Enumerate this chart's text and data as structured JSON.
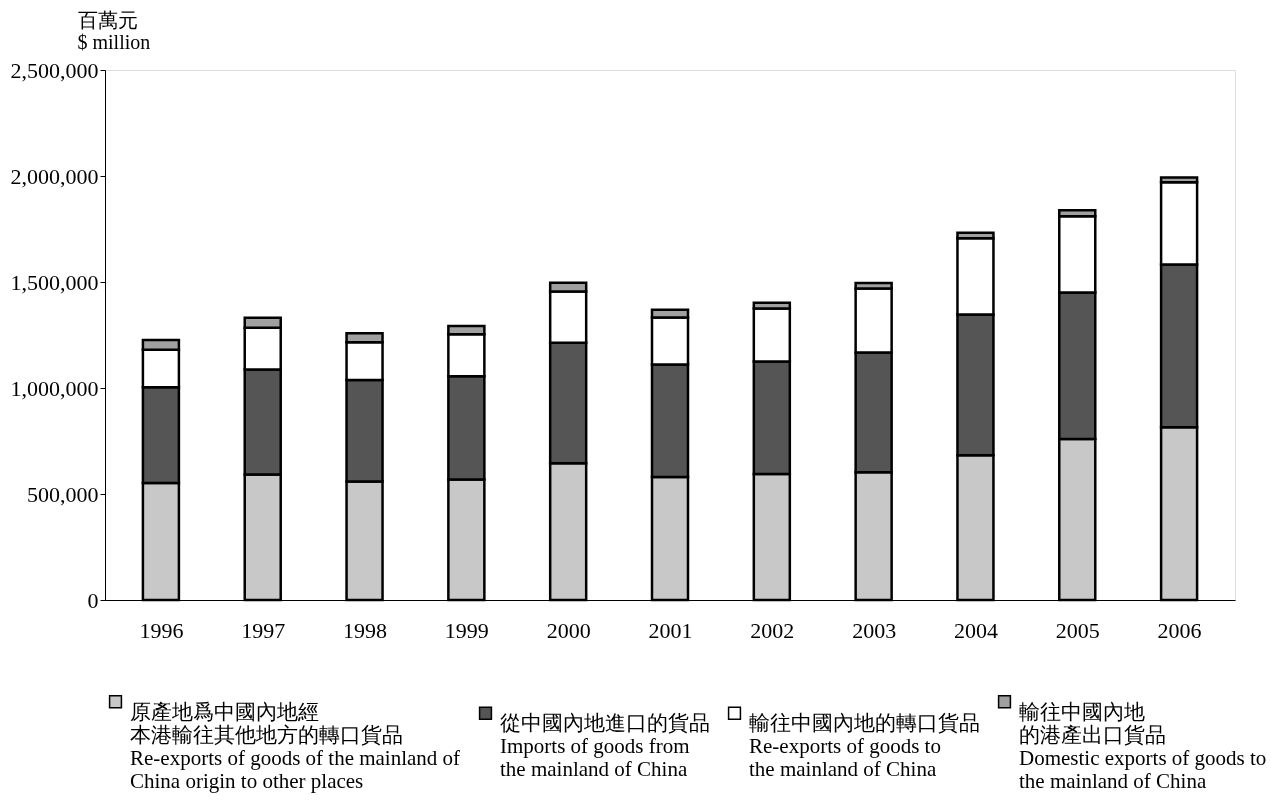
{
  "chart_data": {
    "type": "bar",
    "stacked": true,
    "ylabel": "百萬元\n$ million",
    "categories": [
      "1996",
      "1997",
      "1998",
      "1999",
      "2000",
      "2001",
      "2002",
      "2003",
      "2004",
      "2005",
      "2006"
    ],
    "series": [
      {
        "name": "原產地爲中國內地經本港輸往其他地方的轉口貨品\nRe-exports of goods of the mainland of\nChina origin to other places",
        "color": "#c8c8c8",
        "values": [
          552000,
          592000,
          559000,
          568000,
          645000,
          580000,
          594000,
          603000,
          683000,
          760000,
          815000
        ]
      },
      {
        "name": "從中國內地進口的貨品\nImports of goods from\nthe mainland of China",
        "color": "#555555",
        "values": [
          451000,
          495000,
          479000,
          488000,
          569000,
          531000,
          531000,
          564000,
          664000,
          690000,
          767000
        ]
      },
      {
        "name": "輸往中國內地的轉口貨品\nRe-exports of goods to\nthe mainland of China",
        "color": "#ffffff",
        "values": [
          178000,
          197000,
          178000,
          197000,
          241000,
          222000,
          250000,
          302000,
          359000,
          360000,
          389000
        ]
      },
      {
        "name": "輸往中國內地的港產出口貨品\nDomestic exports of goods to\nthe mainland of China",
        "color": "#a0a0a0",
        "values": [
          45000,
          47000,
          42000,
          40000,
          42000,
          36000,
          27000,
          26000,
          26000,
          28000,
          22000
        ]
      }
    ],
    "ylim": [
      0,
      2500000
    ],
    "yticks": [
      0,
      {
        "value": 500000,
        "label": "500,000"
      },
      {
        "value": 1000000,
        "label": "1,000,000"
      },
      {
        "value": 1500000,
        "label": "1,500,000"
      },
      {
        "value": 2000000,
        "label": "2,000,000"
      },
      {
        "value": 2500000,
        "label": "2,500,000"
      }
    ],
    "grid": false,
    "legend": "bottom"
  }
}
